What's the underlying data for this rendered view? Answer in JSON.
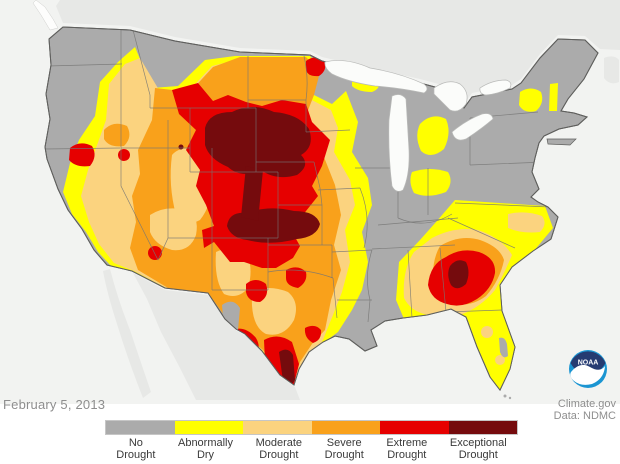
{
  "date_label": "February 5, 2013",
  "credits": {
    "site": "Climate.gov",
    "data_source": "Data: NDMC"
  },
  "noaa_logo_text": "NOAA",
  "map": {
    "region": "Contiguous United States drought conditions",
    "colors": {
      "no_drought": "#ababab",
      "abnormally_dry": "#ffff00",
      "moderate_drought": "#fbd37f",
      "severe_drought": "#f9a11b",
      "extreme_drought": "#e60000",
      "exceptional_drought": "#750b0d",
      "background": "#f2f3f1",
      "neighbor_land": "#e7e8e6",
      "lakes": "#fbfcfa"
    }
  },
  "legend": {
    "items": [
      {
        "id": "no-drought",
        "label_line1": "No",
        "label_line2": "Drought",
        "color": "#ababab"
      },
      {
        "id": "abnormally-dry",
        "label_line1": "Abnormally",
        "label_line2": "Dry",
        "color": "#ffff00"
      },
      {
        "id": "moderate-drought",
        "label_line1": "Moderate",
        "label_line2": "Drought",
        "color": "#fbd37f"
      },
      {
        "id": "severe-drought",
        "label_line1": "Severe",
        "label_line2": "Drought",
        "color": "#f9a11b"
      },
      {
        "id": "extreme-drought",
        "label_line1": "Extreme",
        "label_line2": "Drought",
        "color": "#e60000"
      },
      {
        "id": "exceptional-drought",
        "label_line1": "Exceptional",
        "label_line2": "Drought",
        "color": "#750b0d"
      }
    ]
  }
}
